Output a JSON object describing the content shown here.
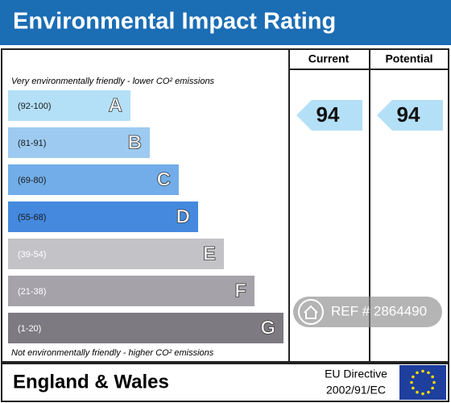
{
  "header": {
    "title": "Environmental Impact Rating"
  },
  "columns": {
    "current": "Current",
    "potential": "Potential"
  },
  "notes": {
    "top": "Very environmentally friendly - lower CO² emissions",
    "bottom": "Not environmentally friendly - higher CO² emissions"
  },
  "bands": [
    {
      "range": "(92-100)",
      "letter": "A",
      "color": "#b3e0f7"
    },
    {
      "range": "(81-91)",
      "letter": "B",
      "color": "#9dcaf0"
    },
    {
      "range": "(69-80)",
      "letter": "C",
      "color": "#72ade9"
    },
    {
      "range": "(55-68)",
      "letter": "D",
      "color": "#4489de"
    },
    {
      "range": "(39-54)",
      "letter": "E",
      "color": "#c3c3c7"
    },
    {
      "range": "(21-38)",
      "letter": "F",
      "color": "#a6a2aa"
    },
    {
      "range": "(1-20)",
      "letter": "G",
      "color": "#7d7b81"
    }
  ],
  "ratings": {
    "current": 94,
    "potential": 94,
    "color": "#b3e0f7"
  },
  "footer": {
    "region": "England & Wales",
    "directive_line1": "EU Directive",
    "directive_line2": "2002/91/EC"
  },
  "watermark": {
    "text": "REF # 2864490"
  }
}
